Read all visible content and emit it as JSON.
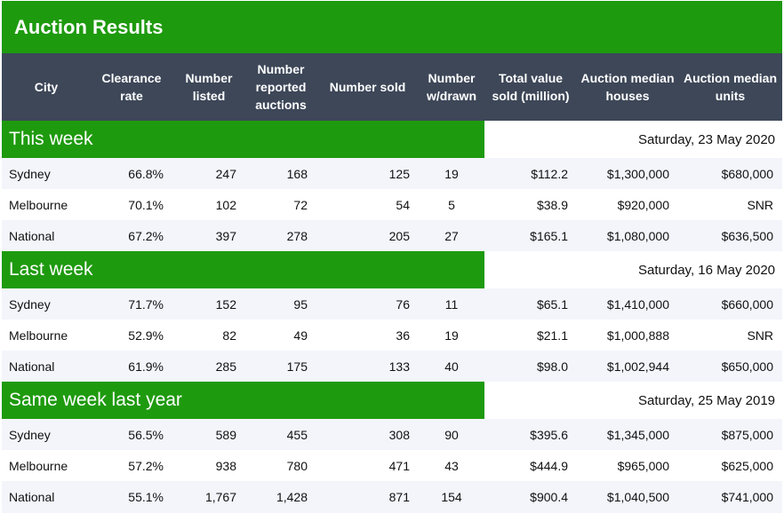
{
  "title": "Auction Results",
  "columns": [
    "City",
    "Clearance rate",
    "Number listed",
    "Number reported auctions",
    "Number sold",
    "Number w/drawn",
    "Total value sold (million)",
    "Auction median houses",
    "Auction median units"
  ],
  "sections": [
    {
      "title": "This week",
      "date": "Saturday, 23 May 2020",
      "rows": [
        {
          "city": "Sydney",
          "clearance": "66.8%",
          "listed": "247",
          "reported": "168",
          "sold": "125",
          "withdrawn": "19",
          "value": "$112.2",
          "houses": "$1,300,000",
          "units": "$680,000"
        },
        {
          "city": "Melbourne",
          "clearance": "70.1%",
          "listed": "102",
          "reported": "72",
          "sold": "54",
          "withdrawn": "5",
          "value": "$38.9",
          "houses": "$920,000",
          "units": "SNR"
        },
        {
          "city": "National",
          "clearance": "67.2%",
          "listed": "397",
          "reported": "278",
          "sold": "205",
          "withdrawn": "27",
          "value": "$165.1",
          "houses": "$1,080,000",
          "units": "$636,500"
        }
      ]
    },
    {
      "title": "Last week",
      "date": "Saturday, 16 May 2020",
      "rows": [
        {
          "city": "Sydney",
          "clearance": "71.7%",
          "listed": "152",
          "reported": "95",
          "sold": "76",
          "withdrawn": "11",
          "value": "$65.1",
          "houses": "$1,410,000",
          "units": "$660,000"
        },
        {
          "city": "Melbourne",
          "clearance": "52.9%",
          "listed": "82",
          "reported": "49",
          "sold": "36",
          "withdrawn": "19",
          "value": "$21.1",
          "houses": "$1,000,888",
          "units": "SNR"
        },
        {
          "city": "National",
          "clearance": "61.9%",
          "listed": "285",
          "reported": "175",
          "sold": "133",
          "withdrawn": "40",
          "value": "$98.0",
          "houses": "$1,002,944",
          "units": "$650,000"
        }
      ]
    },
    {
      "title": "Same week last year",
      "date": "Saturday, 25 May 2019",
      "rows": [
        {
          "city": "Sydney",
          "clearance": "56.5%",
          "listed": "589",
          "reported": "455",
          "sold": "308",
          "withdrawn": "90",
          "value": "$395.6",
          "houses": "$1,345,000",
          "units": "$875,000"
        },
        {
          "city": "Melbourne",
          "clearance": "57.2%",
          "listed": "938",
          "reported": "780",
          "sold": "471",
          "withdrawn": "43",
          "value": "$444.9",
          "houses": "$965,000",
          "units": "$625,000"
        },
        {
          "city": "National",
          "clearance": "55.1%",
          "listed": "1,767",
          "reported": "1,428",
          "sold": "871",
          "withdrawn": "154",
          "value": "$900.4",
          "houses": "$1,040,500",
          "units": "$741,000"
        }
      ]
    }
  ],
  "colors": {
    "brand_green": "#1e9a0e",
    "header_slate": "#3d4758",
    "alt_row": "#f3f5fb"
  }
}
